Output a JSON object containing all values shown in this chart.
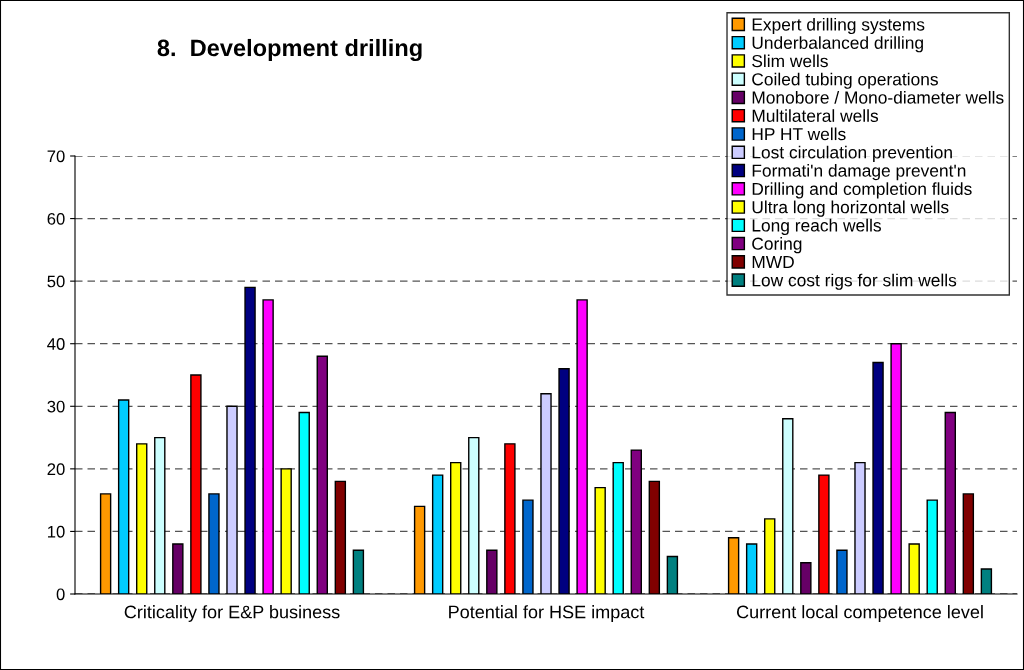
{
  "chart_data": {
    "type": "bar",
    "title": "8.  Development drilling",
    "categories": [
      "Criticality for E&P business",
      "Potential for HSE impact",
      "Current local competence level"
    ],
    "ylim": [
      0,
      70
    ],
    "yticks": [
      0,
      10,
      20,
      30,
      40,
      50,
      60,
      70
    ],
    "grid": "y",
    "legend": "top right",
    "series": [
      {
        "name": "Expert drilling systems",
        "color": "#ff9900",
        "values": [
          16,
          14,
          9
        ]
      },
      {
        "name": "Underbalanced drilling",
        "color": "#00ccff",
        "values": [
          31,
          19,
          8
        ]
      },
      {
        "name": "Slim wells",
        "color": "#ffff00",
        "values": [
          24,
          21,
          12
        ]
      },
      {
        "name": "Coiled tubing operations",
        "color": "#ccffff",
        "values": [
          25,
          25,
          28
        ]
      },
      {
        "name": "Monobore / Mono-diameter wells",
        "color": "#660066",
        "values": [
          8,
          7,
          5
        ]
      },
      {
        "name": "Multilateral wells",
        "color": "#ff0000",
        "values": [
          35,
          24,
          19
        ]
      },
      {
        "name": "HP HT wells",
        "color": "#0066cc",
        "values": [
          16,
          15,
          7
        ]
      },
      {
        "name": "Lost circulation prevention",
        "color": "#ccccff",
        "values": [
          30,
          32,
          21
        ]
      },
      {
        "name": "Formati'n damage prevent'n",
        "color": "#000080",
        "values": [
          49,
          36,
          37
        ]
      },
      {
        "name": "Drilling and completion fluids",
        "color": "#ff00ff",
        "values": [
          47,
          47,
          40
        ]
      },
      {
        "name": "Ultra long horizontal wells",
        "color": "#ffff00",
        "values": [
          20,
          17,
          8
        ]
      },
      {
        "name": "Long reach wells",
        "color": "#00ffff",
        "values": [
          29,
          21,
          15
        ]
      },
      {
        "name": "Coring",
        "color": "#800080",
        "values": [
          38,
          23,
          29
        ]
      },
      {
        "name": "MWD",
        "color": "#800000",
        "values": [
          18,
          18,
          16
        ]
      },
      {
        "name": "Low cost rigs for slim wells",
        "color": "#008080",
        "values": [
          7,
          6,
          4
        ]
      }
    ]
  }
}
